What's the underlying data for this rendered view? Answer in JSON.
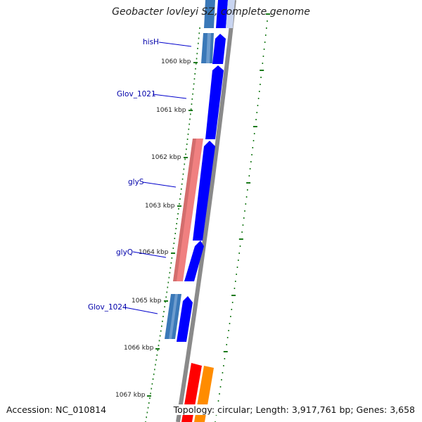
{
  "title": "Geobacter lovleyi SZ, complete genome",
  "footer": {
    "accession": "Accession: NC_010814",
    "topology": "Topology: circular; Length: 3,917,761 bp; Genes: 3,658"
  },
  "ruler_labels": [
    "1060 kbp",
    "1061 kbp",
    "1062 kbp",
    "1063 kbp",
    "1064 kbp",
    "1065 kbp",
    "1066 kbp",
    "1067 kbp"
  ],
  "gene_labels": [
    "hisH",
    "Glov_1021",
    "glyS",
    "glyQ",
    "Glov_1024"
  ],
  "colors": {
    "backbone": "#8a8a8a",
    "forward_gene": "#0000ff",
    "reverse_gene": "#3a78b8",
    "rna_gene": "#f08080",
    "red_gene": "#ff0000",
    "orange_gene": "#ff8c00",
    "tick": "#1a7a1a",
    "label_line": "#0000cc"
  }
}
